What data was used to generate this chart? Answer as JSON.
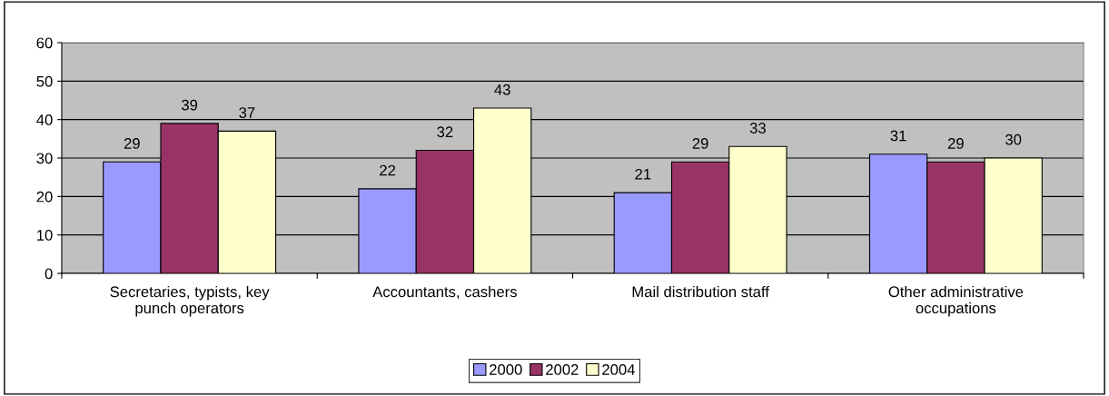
{
  "chart_data": {
    "type": "bar",
    "categories": [
      "Secretaries, typists, key\npunch operators",
      "Accountants, cashers",
      "Mail distribution staff",
      "Other administrative\noccupations"
    ],
    "series": [
      {
        "name": "2000",
        "color": "#9999ff",
        "values": [
          29,
          22,
          21,
          31
        ]
      },
      {
        "name": "2002",
        "color": "#993366",
        "values": [
          39,
          32,
          29,
          29
        ]
      },
      {
        "name": "2004",
        "color": "#ffffcc",
        "values": [
          37,
          43,
          33,
          30
        ]
      }
    ],
    "ylim": [
      0,
      60
    ],
    "yticks": [
      0,
      10,
      20,
      30,
      40,
      50,
      60
    ],
    "grid": "y",
    "legend": "bottom",
    "data_labels": true
  }
}
